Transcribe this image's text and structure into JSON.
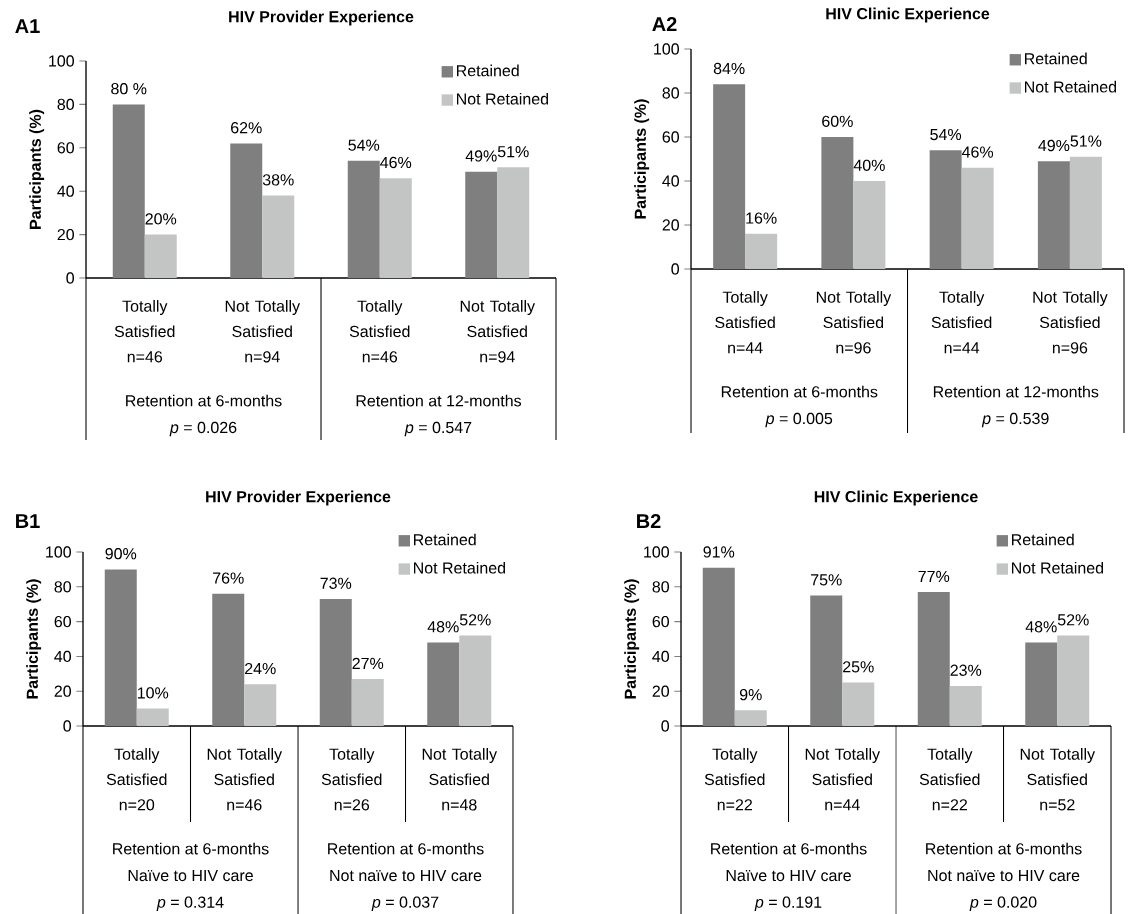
{
  "chart_data": [
    {
      "type": "bar",
      "title": "HIV Provider Experience",
      "ylabel": "Participants (%)",
      "legend": "top right",
      "ylim": [
        0,
        100
      ],
      "yticks": [
        0,
        20,
        40,
        60,
        80,
        100
      ],
      "categories": [
        "Totally Satisfied n=46",
        "Not Totally Satisfied n=94",
        "Totally Satisfied n=46",
        "Not Totally Satisfied n=94"
      ],
      "series": [
        {
          "name": "Retained",
          "color": "#7f7f7f",
          "values": [
            80,
            62,
            54,
            49
          ],
          "value_labels": [
            "80 %",
            "62%",
            "54%",
            "49%"
          ]
        },
        {
          "name": "Not Retained",
          "color": "#c3c4c4",
          "values": [
            20,
            38,
            46,
            51
          ],
          "value_labels": [
            "20%",
            "38%",
            "46%",
            "51%"
          ]
        }
      ],
      "annotations": [
        "A1",
        "Retention at 6-months",
        "*p* = 0.026",
        "Retention at 12-months",
        "*p* = 0.547"
      ]
    },
    {
      "type": "bar",
      "title": "HIV Clinic Experience",
      "ylabel": "Participants (%)",
      "legend": "top right",
      "ylim": [
        0,
        100
      ],
      "yticks": [
        0,
        20,
        40,
        60,
        80,
        100
      ],
      "categories": [
        "Totally Satisfied n=44",
        "Not Totally Satisfied n=96",
        "Totally Satisfied n=44",
        "Not Totally Satisfied n=96"
      ],
      "series": [
        {
          "name": "Retained",
          "color": "#7f7f7f",
          "values": [
            84,
            60,
            54,
            49
          ],
          "value_labels": [
            "84%",
            "60%",
            "54%",
            "49%"
          ]
        },
        {
          "name": "Not Retained",
          "color": "#c3c4c4",
          "values": [
            16,
            40,
            46,
            51
          ],
          "value_labels": [
            "16%",
            "40%",
            "46%",
            "51%"
          ]
        }
      ],
      "annotations": [
        "A2",
        "Retention at 6-months",
        "*p* = 0.005",
        "Retention at 12-months",
        "*p* = 0.539"
      ]
    },
    {
      "type": "bar",
      "title": "HIV Provider Experience",
      "ylabel": "Participants (%)",
      "legend": "top right",
      "ylim": [
        0,
        100
      ],
      "yticks": [
        0,
        20,
        40,
        60,
        80,
        100
      ],
      "categories": [
        "Totally Satisfied n=20",
        "Not Totally Satisfied n=46",
        "Totally Satisfied n=26",
        "Not Totally Satisfied n=48"
      ],
      "series": [
        {
          "name": "Retained",
          "color": "#7f7f7f",
          "values": [
            90,
            76,
            73,
            48
          ],
          "value_labels": [
            "90%",
            "76%",
            "73%",
            "48%"
          ]
        },
        {
          "name": "Not Retained",
          "color": "#c3c4c4",
          "values": [
            10,
            24,
            27,
            52
          ],
          "value_labels": [
            "10%",
            "24%",
            "27%",
            "52%"
          ]
        }
      ],
      "annotations": [
        "B1",
        "Retention at 6-months",
        "Naïve to HIV care",
        "*p* = 0.314",
        "Retention at 6-months",
        "Not naïve to HIV care",
        "*p* = 0.037"
      ]
    },
    {
      "type": "bar",
      "title": "HIV Clinic Experience",
      "ylabel": "Participants (%)",
      "legend": "top right",
      "ylim": [
        0,
        100
      ],
      "yticks": [
        0,
        20,
        40,
        60,
        80,
        100
      ],
      "categories": [
        "Totally Satisfied n=22",
        "Not Totally Satisfied n=44",
        "Totally Satisfied n=22",
        "Not Totally Satisfied n=52"
      ],
      "series": [
        {
          "name": "Retained",
          "color": "#7f7f7f",
          "values": [
            91,
            75,
            77,
            48
          ],
          "value_labels": [
            "91%",
            "75%",
            "77%",
            "48%"
          ]
        },
        {
          "name": "Not Retained",
          "color": "#c3c4c4",
          "values": [
            9,
            25,
            23,
            52
          ],
          "value_labels": [
            "9%",
            "25%",
            "23%",
            "52%"
          ]
        }
      ],
      "annotations": [
        "B2",
        "Retention at 6-months",
        "Naïve to HIV care",
        "*p* = 0.191",
        "Retention at 6-months",
        "Not naïve to HIV care",
        "*p* = 0.020"
      ]
    }
  ]
}
